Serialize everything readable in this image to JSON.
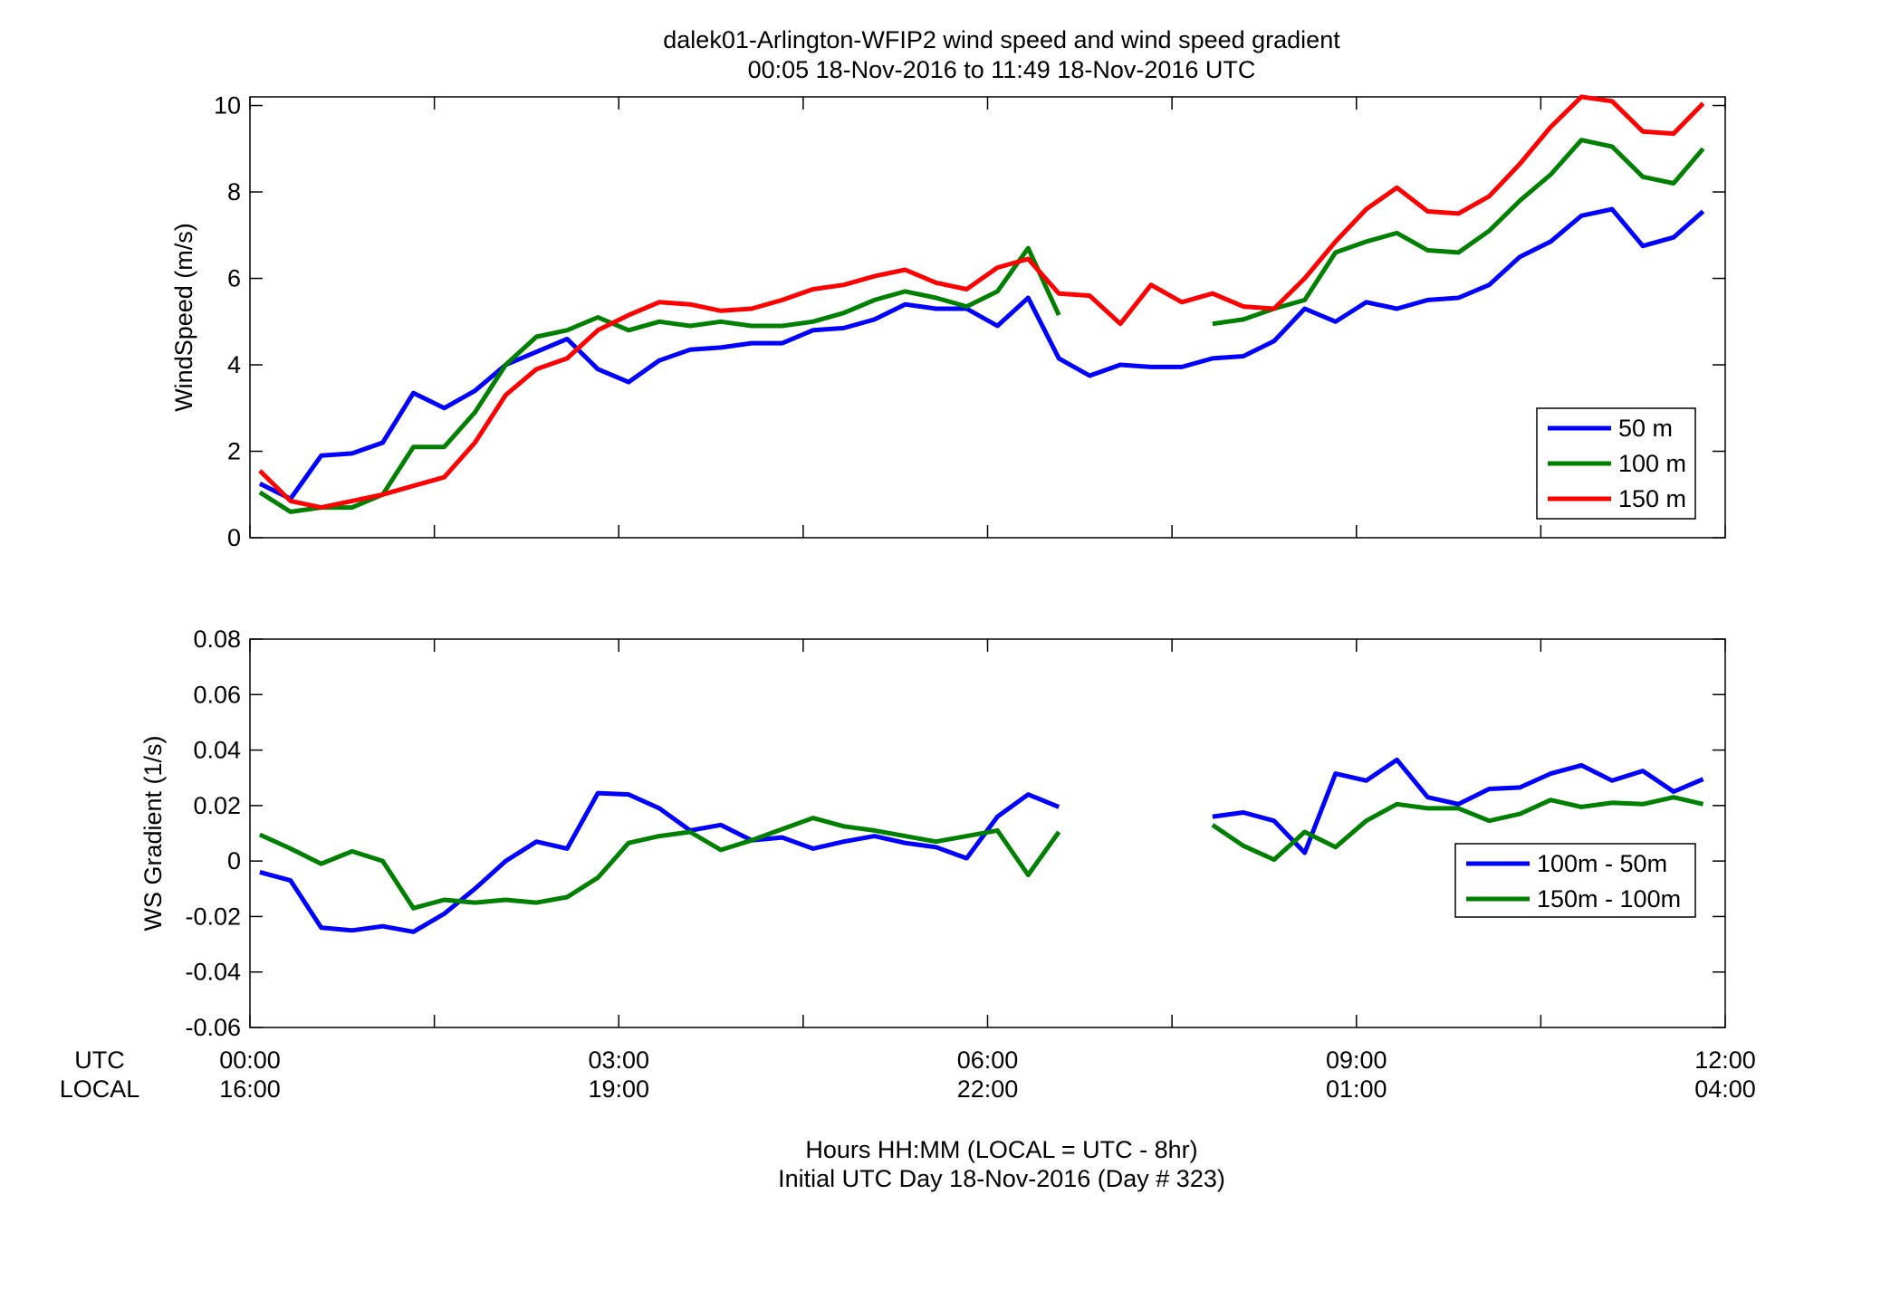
{
  "figure": {
    "title_line1": "dalek01-Arlington-WFIP2  wind speed and wind speed gradient",
    "title_line2": "00:05 18-Nov-2016 to 11:49 18-Nov-2016  UTC",
    "xlabel_line1": "Hours HH:MM  (LOCAL = UTC - 8hr)",
    "xlabel_line2": "Initial UTC Day 18-Nov-2016 (Day # 323)",
    "utc_row_label": "UTC",
    "local_row_label": "LOCAL"
  },
  "x_axis": {
    "range_hours": [
      0,
      12
    ],
    "ticks_hours": [
      0,
      3,
      6,
      9,
      12
    ],
    "utc_tick_labels": [
      "00:00",
      "03:00",
      "06:00",
      "09:00",
      "12:00"
    ],
    "local_tick_labels": [
      "16:00",
      "19:00",
      "22:00",
      "01:00",
      "04:00"
    ]
  },
  "colors": {
    "blue": "#0000ff",
    "green": "#008000",
    "red": "#ff0000"
  },
  "chart_data": [
    {
      "type": "line",
      "ylabel": "WindSpeed (m/s)",
      "ylim": [
        0,
        10.2
      ],
      "yticks": [
        0,
        2,
        4,
        6,
        8,
        10
      ],
      "ytick_labels": [
        "0",
        "2",
        "4",
        "6",
        "8",
        "10"
      ],
      "legend_position": "bottom-right",
      "grid": false,
      "x": [
        0.08,
        0.33,
        0.58,
        0.83,
        1.08,
        1.33,
        1.58,
        1.83,
        2.08,
        2.33,
        2.58,
        2.83,
        3.08,
        3.33,
        3.58,
        3.83,
        4.08,
        4.33,
        4.58,
        4.83,
        5.08,
        5.33,
        5.58,
        5.83,
        6.08,
        6.33,
        6.58,
        6.83,
        7.08,
        7.33,
        7.58,
        7.83,
        8.08,
        8.33,
        8.58,
        8.83,
        9.08,
        9.33,
        9.58,
        9.83,
        10.08,
        10.33,
        10.58,
        10.83,
        11.08,
        11.33,
        11.58,
        11.82
      ],
      "series": [
        {
          "name": "50 m",
          "color": "#0000ff",
          "values": [
            1.25,
            0.9,
            1.9,
            1.95,
            2.2,
            3.35,
            3.0,
            3.4,
            4.0,
            4.3,
            4.6,
            3.9,
            3.6,
            4.1,
            4.35,
            4.4,
            4.5,
            4.5,
            4.8,
            4.85,
            5.05,
            5.4,
            5.3,
            5.3,
            4.9,
            5.55,
            4.15,
            3.75,
            4.0,
            3.95,
            3.95,
            4.15,
            4.2,
            4.55,
            5.3,
            5.0,
            5.45,
            5.3,
            5.5,
            5.55,
            5.85,
            6.5,
            6.85,
            7.45,
            7.6,
            6.75,
            6.95,
            7.55
          ]
        },
        {
          "name": "100 m",
          "color": "#008000",
          "values": [
            1.05,
            0.6,
            0.7,
            0.7,
            1.0,
            2.1,
            2.1,
            2.9,
            4.0,
            4.65,
            4.8,
            5.1,
            4.8,
            5.0,
            4.9,
            5.0,
            4.9,
            4.9,
            5.0,
            5.2,
            5.5,
            5.7,
            5.55,
            5.35,
            5.7,
            6.7,
            5.15,
            null,
            null,
            null,
            null,
            4.95,
            5.05,
            5.3,
            5.5,
            6.6,
            6.85,
            7.05,
            6.65,
            6.6,
            7.1,
            7.8,
            8.4,
            9.2,
            9.05,
            8.35,
            8.2,
            9.0
          ]
        },
        {
          "name": "150 m",
          "color": "#ff0000",
          "values": [
            1.55,
            0.85,
            0.7,
            0.85,
            1.0,
            1.2,
            1.4,
            2.2,
            3.3,
            3.9,
            4.15,
            4.8,
            5.15,
            5.45,
            5.4,
            5.25,
            5.3,
            5.5,
            5.75,
            5.85,
            6.05,
            6.2,
            5.9,
            5.75,
            6.25,
            6.45,
            5.65,
            5.6,
            4.95,
            5.85,
            5.45,
            5.65,
            5.35,
            5.3,
            6.0,
            6.85,
            7.6,
            8.1,
            7.55,
            7.5,
            7.9,
            8.65,
            9.5,
            10.2,
            10.1,
            9.4,
            9.35,
            10.05
          ]
        }
      ]
    },
    {
      "type": "line",
      "ylabel": "WS Gradient (1/s)",
      "ylim": [
        -0.06,
        0.08
      ],
      "yticks": [
        -0.06,
        -0.04,
        -0.02,
        0,
        0.02,
        0.04,
        0.06,
        0.08
      ],
      "ytick_labels": [
        "-0.06",
        "-0.04",
        "-0.02",
        "0",
        "0.02",
        "0.04",
        "0.06",
        "0.08"
      ],
      "legend_position": "bottom-right",
      "grid": false,
      "x": [
        0.08,
        0.33,
        0.58,
        0.83,
        1.08,
        1.33,
        1.58,
        1.83,
        2.08,
        2.33,
        2.58,
        2.83,
        3.08,
        3.33,
        3.58,
        3.83,
        4.08,
        4.33,
        4.58,
        4.83,
        5.08,
        5.33,
        5.58,
        5.83,
        6.08,
        6.33,
        6.58,
        6.83,
        7.08,
        7.33,
        7.58,
        7.83,
        8.08,
        8.33,
        8.58,
        8.83,
        9.08,
        9.33,
        9.58,
        9.83,
        10.08,
        10.33,
        10.58,
        10.83,
        11.08,
        11.33,
        11.58,
        11.82
      ],
      "series": [
        {
          "name": "100m - 50m",
          "color": "#0000ff",
          "values": [
            -0.004,
            -0.007,
            -0.024,
            -0.025,
            -0.0235,
            -0.0255,
            -0.019,
            -0.01,
            0.0,
            0.007,
            0.0045,
            0.0245,
            0.024,
            0.019,
            0.011,
            0.013,
            0.0075,
            0.0085,
            0.0045,
            0.007,
            0.009,
            0.0065,
            0.005,
            0.001,
            0.016,
            0.024,
            0.0195,
            null,
            null,
            null,
            null,
            0.016,
            0.0175,
            0.0145,
            0.003,
            0.0315,
            0.029,
            0.0365,
            0.023,
            0.0205,
            0.026,
            0.0265,
            0.0315,
            0.0345,
            0.029,
            0.0325,
            0.025,
            0.0295
          ]
        },
        {
          "name": "150m - 100m",
          "color": "#008000",
          "values": [
            0.0095,
            0.0045,
            -0.001,
            0.0035,
            0.0,
            -0.017,
            -0.014,
            -0.015,
            -0.014,
            -0.015,
            -0.013,
            -0.006,
            0.0065,
            0.009,
            0.0105,
            0.004,
            0.0075,
            0.0115,
            0.0155,
            0.0125,
            0.011,
            0.009,
            0.007,
            0.009,
            0.011,
            -0.005,
            0.0105,
            null,
            null,
            null,
            null,
            0.013,
            0.0055,
            0.0005,
            0.0105,
            0.005,
            0.0145,
            0.0205,
            0.019,
            0.019,
            0.0145,
            0.017,
            0.022,
            0.0195,
            0.021,
            0.0205,
            0.023,
            0.0205
          ]
        }
      ]
    }
  ]
}
